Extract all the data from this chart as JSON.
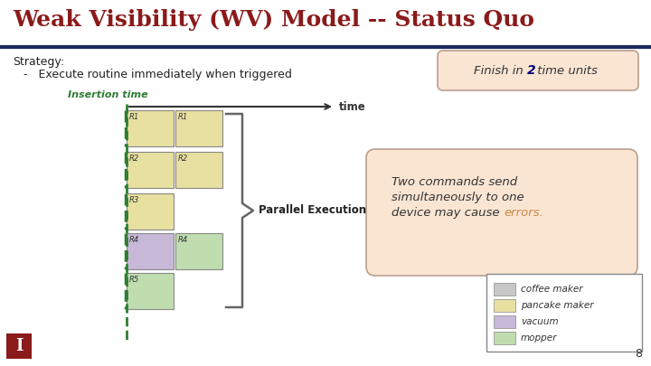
{
  "title": "Weak Visibility (WV) Model -- Status Quo",
  "title_color": "#8B1A1A",
  "title_fontsize": 18,
  "bg_color": "#FFFFFF",
  "header_line_color": "#1C2B5E",
  "strategy_text": "Strategy:",
  "bullet_text": "Execute routine immediately when triggered",
  "insertion_time_label": "Insertion time",
  "insertion_time_color": "#2E7D32",
  "time_arrow_label": "time",
  "parallel_label": "Parallel Execution",
  "finish_box_text": "Finish in ",
  "finish_box_num": "2",
  "finish_box_rest": " time units",
  "finish_box_bg": "#FAE5D3",
  "finish_box_border": "#B8A090",
  "two_commands_line1": "Two commands send",
  "two_commands_line2": "simultaneously to one",
  "two_commands_line3": "device may cause ",
  "errors_text": "errors.",
  "errors_color": "#CC8844",
  "note_box_bg": "#FAE5D3",
  "note_box_border": "#B8A090",
  "legend_items": [
    "coffee maker",
    "pancake maker",
    "vacuum",
    "mopper"
  ],
  "legend_colors": [
    "#C8C8C8",
    "#E8E0A0",
    "#C8B8D8",
    "#C0DDB0"
  ],
  "page_number": "8",
  "rows": [
    {
      "label": "R1",
      "col1_bg": "#E8E0A0",
      "col2_bg": "#E8E0A0",
      "col2_label": "R1",
      "has_col2": true
    },
    {
      "label": "R2",
      "col1_bg": "#E8E0A0",
      "col2_bg": "#E8E0A0",
      "col2_label": "R2",
      "has_col2": true
    },
    {
      "label": "R3",
      "col1_bg": "#E8E0A0",
      "col2_bg": null,
      "col2_label": null,
      "has_col2": false
    },
    {
      "label": "R4",
      "col1_bg": "#C8B8D8",
      "col2_bg": "#C0DDB0",
      "col2_label": "R4",
      "has_col2": true
    },
    {
      "label": "R5",
      "col1_bg": "#C0DDB0",
      "col2_bg": null,
      "col2_label": null,
      "has_col2": false
    }
  ]
}
